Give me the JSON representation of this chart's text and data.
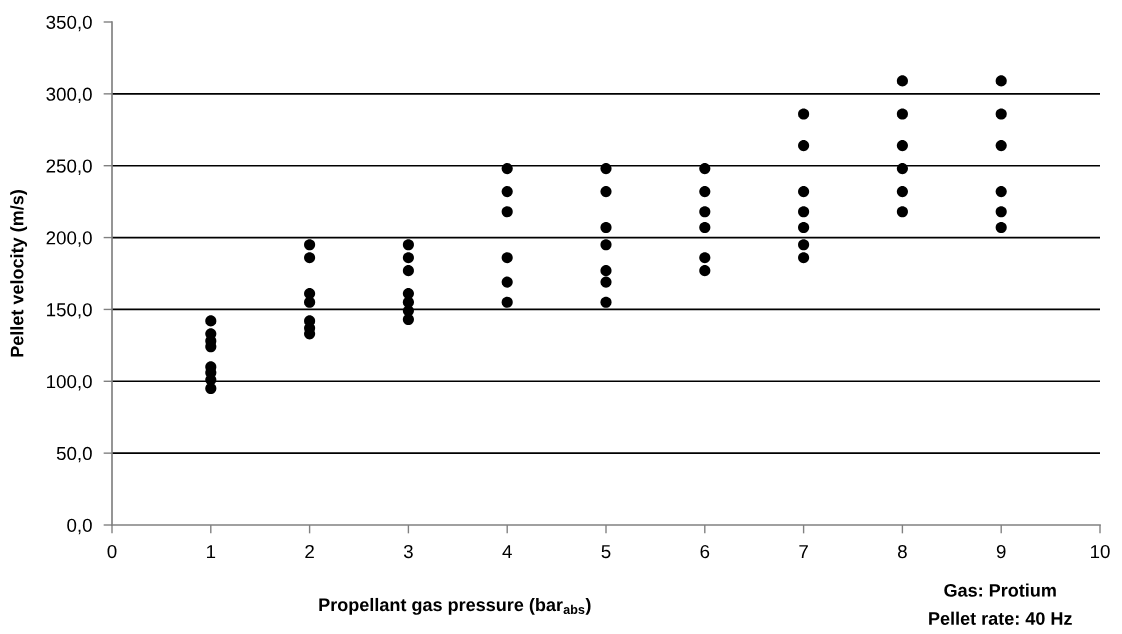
{
  "chart_data": {
    "type": "scatter",
    "xlabel": "Propellant gas pressure (bar$_{abs}$)",
    "ylabel": "Pellet velocity (m/s)",
    "annotations": [
      "Gas: Protium",
      "Pellet rate: 40 Hz"
    ],
    "series": [
      {
        "color": "#000000",
        "x": [
          1,
          1,
          1,
          1,
          1,
          1,
          1,
          1,
          2,
          2,
          2,
          2,
          2,
          2,
          2,
          3,
          3,
          3,
          3,
          3,
          3,
          3,
          4,
          4,
          4,
          4,
          4,
          4,
          5,
          5,
          5,
          5,
          5,
          5,
          5,
          6,
          6,
          6,
          6,
          6,
          6,
          7,
          7,
          7,
          7,
          7,
          7,
          7,
          8,
          8,
          8,
          8,
          8,
          8,
          9,
          9,
          9,
          9,
          9,
          9
        ],
        "values": [
          142,
          133,
          128,
          124,
          110,
          106,
          101,
          95,
          195,
          186,
          161,
          155,
          142,
          137,
          133,
          195,
          186,
          177,
          161,
          155,
          149,
          143,
          248,
          232,
          218,
          186,
          169,
          155,
          248,
          232,
          207,
          195,
          177,
          169,
          155,
          248,
          232,
          218,
          207,
          186,
          177,
          286,
          264,
          232,
          218,
          207,
          195,
          186,
          309,
          286,
          264,
          248,
          232,
          218,
          309,
          286,
          264,
          232,
          218,
          207
        ]
      }
    ],
    "xlim": [
      0,
      10
    ],
    "xticks": [
      0,
      1,
      2,
      3,
      4,
      5,
      6,
      7,
      8,
      9,
      10
    ],
    "ylim": [
      0,
      350
    ],
    "yticks": [
      {
        "value": 0,
        "label": "0,0"
      },
      {
        "value": 50,
        "label": "50,0"
      },
      {
        "value": 100,
        "label": "100,0"
      },
      {
        "value": 150,
        "label": "150,0"
      },
      {
        "value": 200,
        "label": "200,0"
      },
      {
        "value": 250,
        "label": "250,0"
      },
      {
        "value": 300,
        "label": "300,0"
      },
      {
        "value": 350,
        "label": "350,0"
      }
    ],
    "grid": "y",
    "marker": "circle"
  }
}
